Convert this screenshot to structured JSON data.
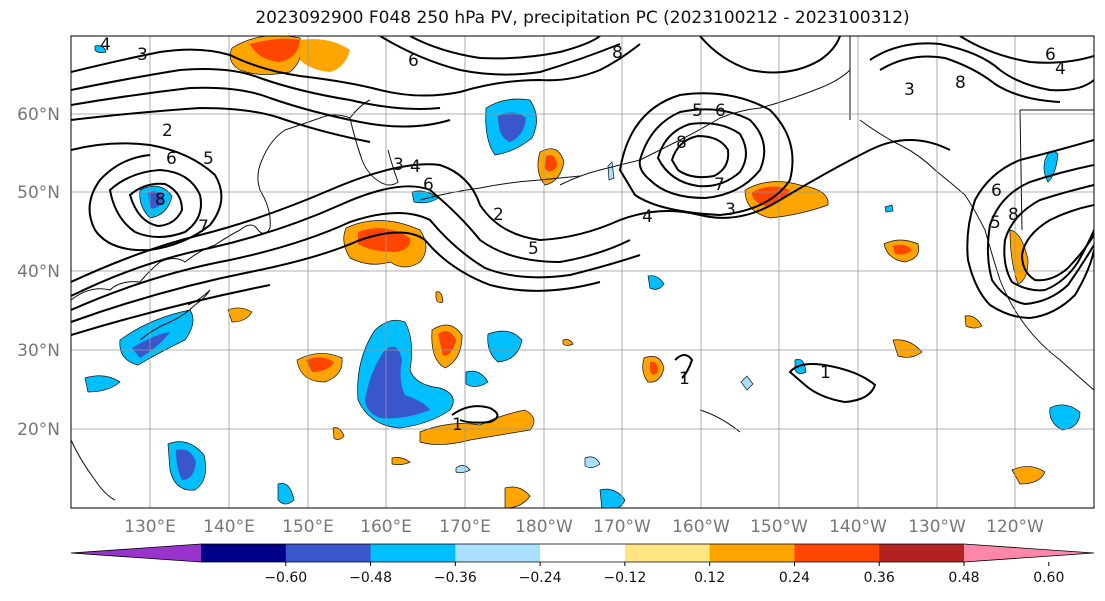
{
  "title": "2023092900 F048 250 hPa PV, precipitation PC (2023100212 - 2023100312)",
  "lat_labels": [
    "60°N",
    "50°N",
    "40°N",
    "30°N",
    "20°N"
  ],
  "lon_labels": [
    "130°E",
    "140°E",
    "150°E",
    "160°E",
    "170°E",
    "180°W",
    "170°W",
    "160°W",
    "150°W",
    "140°W",
    "130°W",
    "120°W"
  ],
  "colorbar": {
    "colors": [
      "#9933cc",
      "#000088",
      "#3a56cc",
      "#00bfff",
      "#aae0ff",
      "#ffffff",
      "#ffe680",
      "#ffa500",
      "#ff4500",
      "#b22222",
      "#ff88aa"
    ],
    "ticks": [
      "−0.60",
      "−0.48",
      "−0.36",
      "−0.24",
      "−0.12",
      "0.12",
      "0.24",
      "0.36",
      "0.48",
      "0.60"
    ]
  },
  "contour_labels": [
    "4",
    "3",
    "6",
    "2",
    "6",
    "8",
    "7",
    "5",
    "3",
    "4",
    "6",
    "2",
    "5",
    "8",
    "8",
    "5",
    "6",
    "7",
    "4",
    "3",
    "3",
    "6",
    "8",
    "4",
    "6",
    "5",
    "8",
    "1",
    "1",
    "1"
  ]
}
